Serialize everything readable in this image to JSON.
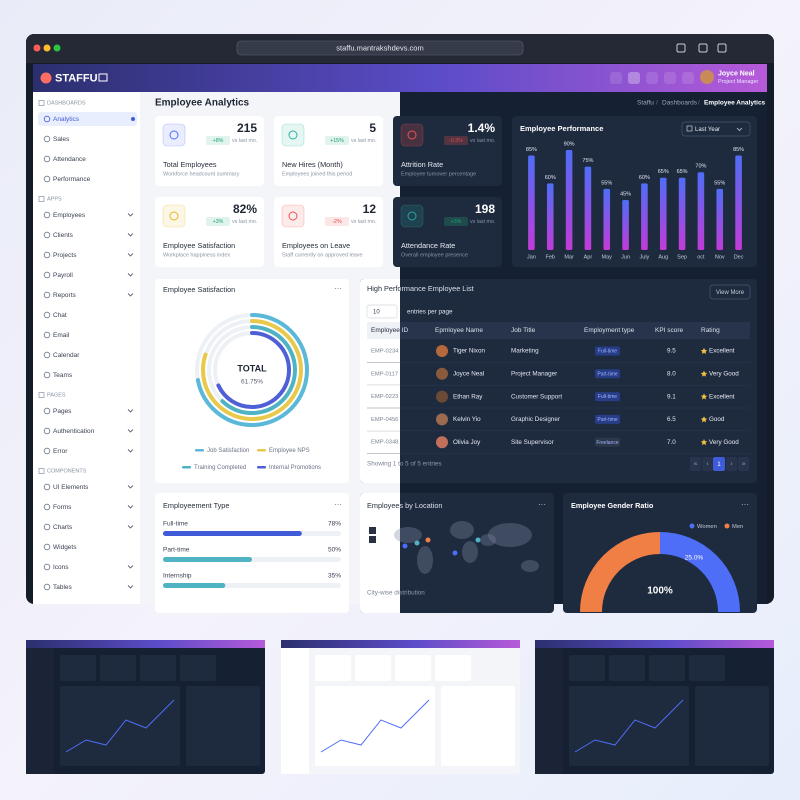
{
  "browser": {
    "url": "staffu.mantrakshdevs.com"
  },
  "header": {
    "brand": "STAFFU",
    "user": {
      "name": "Joyce Neal",
      "role": "Project Manager"
    }
  },
  "sidebar": {
    "sections": [
      {
        "title": "DASHBOARDS",
        "items": [
          {
            "label": "Analytics",
            "active": true
          },
          {
            "label": "Sales"
          },
          {
            "label": "Attendance"
          },
          {
            "label": "Performance"
          }
        ]
      },
      {
        "title": "APPS",
        "items": [
          {
            "label": "Employees",
            "submenu": true
          },
          {
            "label": "Clients",
            "submenu": true
          },
          {
            "label": "Projects",
            "submenu": true
          },
          {
            "label": "Payroll",
            "submenu": true
          },
          {
            "label": "Reports",
            "submenu": true
          },
          {
            "label": "Chat"
          },
          {
            "label": "Email"
          },
          {
            "label": "Calendar"
          },
          {
            "label": "Teams"
          }
        ]
      },
      {
        "title": "PAGES",
        "items": [
          {
            "label": "Pages",
            "submenu": true
          },
          {
            "label": "Authentication",
            "submenu": true
          },
          {
            "label": "Error",
            "submenu": true
          }
        ]
      },
      {
        "title": "COMPONENTS",
        "items": [
          {
            "label": "UI Elements",
            "submenu": true
          },
          {
            "label": "Forms",
            "submenu": true
          },
          {
            "label": "Charts",
            "submenu": true
          },
          {
            "label": "Widgets"
          },
          {
            "label": "Icons",
            "submenu": true
          },
          {
            "label": "Tables",
            "submenu": true
          }
        ]
      }
    ]
  },
  "page": {
    "title": "Employee Analytics",
    "breadcrumb": [
      "Staffu",
      "Dashboards",
      "Employee Analytics"
    ]
  },
  "stats": [
    {
      "value": "215",
      "change": "+8%",
      "trend": "up",
      "compare": "vs last mo.",
      "label": "Total Employees",
      "sub": "Workforce headcount summary",
      "color": "#4f6ef7"
    },
    {
      "value": "5",
      "change": "+15%",
      "trend": "up",
      "compare": "vs last mo.",
      "label": "New Hires (Month)",
      "sub": "Employees joined this period",
      "color": "#2bb3a0"
    },
    {
      "value": "1.4%",
      "change": "-0.3%",
      "trend": "down",
      "compare": "vs last mo.",
      "label": "Attrition Rate",
      "sub": "Employee turnover percentage",
      "color": "#ef5350"
    },
    {
      "value": "82%",
      "change": "+3%",
      "trend": "up",
      "compare": "vs last mo.",
      "label": "Employee Satisfaction",
      "sub": "Workplace happiness index",
      "color": "#e8b923"
    },
    {
      "value": "12",
      "change": "-2%",
      "trend": "down",
      "compare": "vs last mo.",
      "label": "Employees on Leave",
      "sub": "Staff currently on approved leave",
      "color": "#ef5350"
    },
    {
      "value": "198",
      "change": "+3%",
      "trend": "up",
      "compare": "vs last mo.",
      "label": "Attendance Rate",
      "sub": "Overall employee presence",
      "color": "#26a69a"
    }
  ],
  "chart_data": {
    "type": "bar",
    "title": "Employee Performance",
    "filter": "Last Year",
    "categories": [
      "Jan",
      "Feb",
      "Mar",
      "Apr",
      "May",
      "Jun",
      "July",
      "Aug",
      "Sep",
      "oct",
      "Nov",
      "Dec"
    ],
    "values": [
      85,
      60,
      90,
      75,
      55,
      45,
      60,
      65,
      65,
      70,
      55,
      85
    ],
    "value_labels": [
      "85%",
      "60%",
      "90%",
      "75%",
      "55%",
      "45%",
      "60%",
      "65%",
      "65%",
      "70%",
      "55%",
      "85%"
    ],
    "color": "#4f6ef7",
    "color_bottom": "#c13bd6"
  },
  "satisfaction": {
    "title": "Employee Satisfaction",
    "center_label": "TOTAL",
    "center_value": "61.75%",
    "legend": [
      {
        "name": "Job Satisfaction",
        "color": "#5ab8d8"
      },
      {
        "name": "Employee NPS",
        "color": "#e8c94a"
      },
      {
        "name": "Training Completed",
        "color": "#4fb3c4"
      },
      {
        "name": "Internal Promotions",
        "color": "#4f5fd6"
      }
    ]
  },
  "table": {
    "title": "High Performance Employee List",
    "button": "View More",
    "page_size": "10",
    "page_size_label": "entries per page",
    "columns": [
      "Employee ID",
      "Epmloyee Name",
      "Job Title",
      "Employment type",
      "KPI score",
      "Rating"
    ],
    "rows": [
      {
        "id": "EMP-0234",
        "name": "Tiger Nixon",
        "job": "Marketing",
        "type": "Full-time",
        "type_color": "#2f4fd0",
        "kpi": "9.5",
        "rating": "Excellent",
        "avatar": "#b5683b"
      },
      {
        "id": "EMP-0117",
        "name": "Joyce Neal",
        "job": "Project Manager",
        "type": "Part-time",
        "type_color": "#2f4fd0",
        "kpi": "8.0",
        "rating": "Very Good",
        "avatar": "#8a5a3c"
      },
      {
        "id": "EMP-0223",
        "name": "Ethan Ray",
        "job": "Customer Support",
        "type": "Full-time",
        "type_color": "#2f4fd0",
        "kpi": "9.1",
        "rating": "Excellent",
        "avatar": "#6b4a36"
      },
      {
        "id": "EMP-0456",
        "name": "Kelvin Yio",
        "job": "Graphic Designer",
        "type": "Part-time",
        "type_color": "#2f4fd0",
        "kpi": "6.5",
        "rating": "Good",
        "avatar": "#9a6b4f"
      },
      {
        "id": "EMP-0348",
        "name": "Olivia Joy",
        "job": "Site Supervisor",
        "type": "Freelance",
        "type_color": "#3a4457",
        "kpi": "7.0",
        "rating": "Very Good",
        "avatar": "#c2705a"
      }
    ],
    "footer": "Showing 1 to 5 of 5 entries",
    "current_page": "1"
  },
  "employment_type": {
    "title": "Employeement Type",
    "items": [
      {
        "name": "Full-time",
        "value": 78,
        "value_label": "78%",
        "color": "#3f5bd8"
      },
      {
        "name": "Part-time",
        "value": 50,
        "value_label": "50%",
        "color": "#4fb3c4"
      },
      {
        "name": "Internship",
        "value": 35,
        "value_label": "35%",
        "color": "#4fb3c4"
      }
    ]
  },
  "location": {
    "title": "Employees by Location",
    "subtitle": "City-wise distribution"
  },
  "gender": {
    "title": "Employee Gender Ratio",
    "legend": [
      {
        "name": "Women",
        "color": "#4f6ef7"
      },
      {
        "name": "Men",
        "color": "#ef7f45"
      }
    ],
    "inner_label": "25.0%",
    "bottom_label": "100%"
  }
}
